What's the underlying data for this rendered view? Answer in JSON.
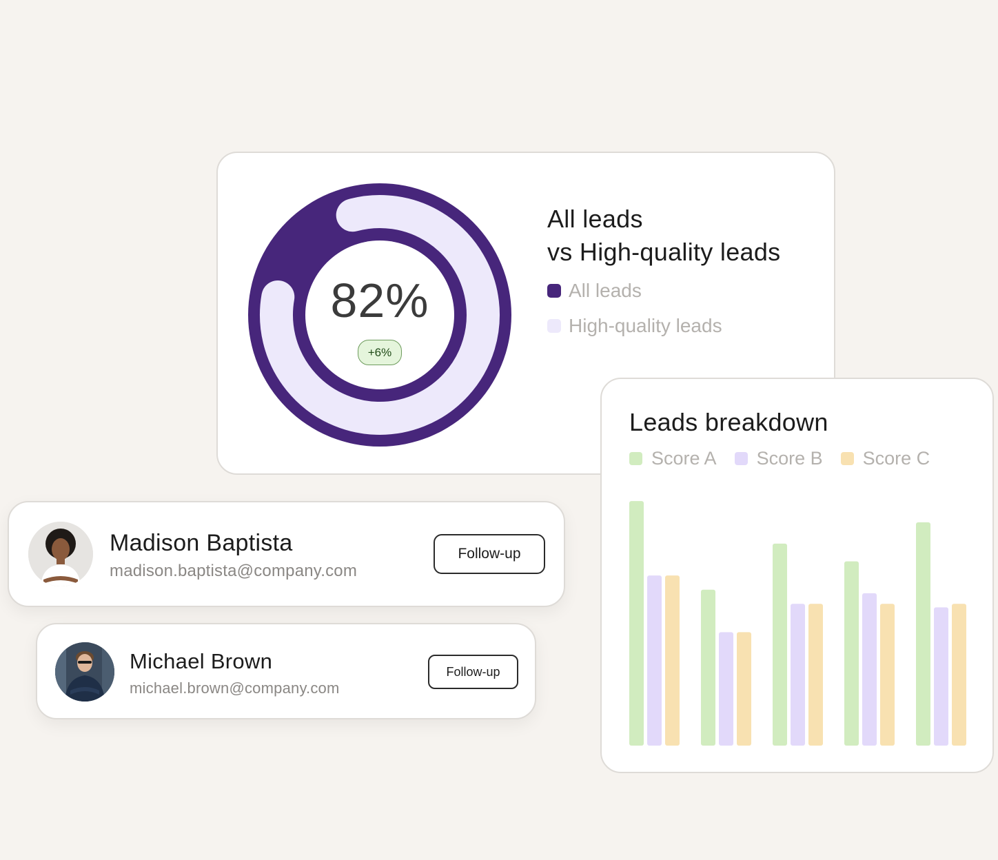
{
  "colors": {
    "all_leads": "#47267b",
    "high_quality_leads": "#ede9fb",
    "score_a": "#d1ecbf",
    "score_b": "#e2d9fa",
    "score_c": "#f8e1b1"
  },
  "donut": {
    "value": "82%",
    "delta": "+6%",
    "title_line1": "All leads",
    "title_line2": "vs High-quality leads",
    "legend": [
      {
        "label": "All leads"
      },
      {
        "label": "High-quality leads"
      }
    ]
  },
  "breakdown": {
    "title": "Leads breakdown",
    "legend": [
      "Score A",
      "Score B",
      "Score C"
    ]
  },
  "chart_data": [
    {
      "type": "pie",
      "title": "",
      "center_label": "82%",
      "delta_label": "+6%",
      "series": [
        {
          "name": "All leads",
          "values": [
            18
          ]
        },
        {
          "name": "High-quality leads",
          "values": [
            82
          ]
        }
      ]
    },
    {
      "type": "bar",
      "title": "Leads breakdown",
      "categories": [
        "",
        "",
        "",
        "",
        ""
      ],
      "series": [
        {
          "name": "Score A",
          "values": [
            69,
            44,
            57,
            52,
            63
          ]
        },
        {
          "name": "Score B",
          "values": [
            48,
            32,
            40,
            43,
            39
          ]
        },
        {
          "name": "Score C",
          "values": [
            48,
            32,
            40,
            40,
            40
          ]
        }
      ],
      "ylim": [
        0,
        70
      ],
      "grid": false,
      "legend": "top-left",
      "xlabel": "",
      "ylabel": ""
    }
  ],
  "contacts": [
    {
      "name": "Madison Baptista",
      "email": "madison.baptista@company.com",
      "button": "Follow-up"
    },
    {
      "name": "Michael Brown",
      "email": "michael.brown@company.com",
      "button": "Follow-up"
    }
  ]
}
